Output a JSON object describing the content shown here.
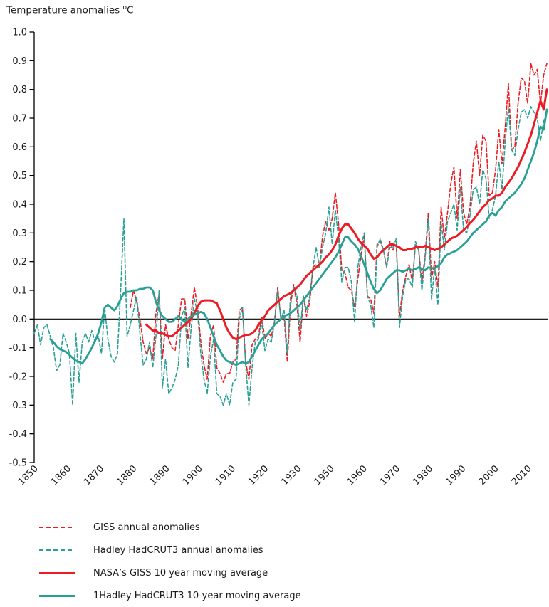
{
  "chart_data": {
    "type": "line",
    "title": "Temperature anomalies",
    "title_unit_sup": "o",
    "title_unit": "C",
    "xlabel": "",
    "ylabel": "Temperature anomalies (deg C)",
    "xlim": [
      1850,
      2010
    ],
    "ylim": [
      -0.5,
      1.0
    ],
    "grid": false,
    "legend_position": "bottom-left",
    "colors": {
      "red": "#ed1c24",
      "teal": "#2aa095",
      "axis": "#000000",
      "text": "#1a1a1a"
    },
    "y_tick_labels": [
      "1.0",
      "0.9",
      "0.8",
      "0.7",
      "0.6",
      "0.5",
      "0.4",
      "0.3",
      "0.2",
      "0.1",
      "0.0",
      "-0.1",
      "-0.2",
      "-0.3",
      "-0.4",
      "-0.5"
    ],
    "x_tick_labels": [
      "1850",
      "1860",
      "1870",
      "1880",
      "1890",
      "1900",
      "1910",
      "1920",
      "1930",
      "1950",
      "1960",
      "1970",
      "1980",
      "1990",
      "2000",
      "2010"
    ],
    "series": [
      {
        "name": "GISS annual anomalies",
        "color": "#ed1c24",
        "style": "dashed",
        "width": 1.6,
        "start_year": 1880,
        "values": [
          0.04,
          0.1,
          0.06,
          0.0,
          -0.08,
          -0.12,
          -0.1,
          -0.14,
          0.02,
          0.09,
          -0.14,
          -0.02,
          -0.07,
          -0.1,
          -0.11,
          -0.02,
          0.07,
          0.07,
          -0.07,
          0.02,
          0.11,
          0.04,
          -0.08,
          -0.16,
          -0.21,
          -0.06,
          -0.02,
          -0.17,
          -0.19,
          -0.22,
          -0.19,
          -0.19,
          -0.15,
          -0.14,
          0.03,
          0.04,
          -0.15,
          -0.21,
          -0.09,
          -0.07,
          -0.06,
          0.01,
          -0.07,
          -0.05,
          -0.06,
          -0.01,
          0.11,
          0.0,
          0.01,
          -0.15,
          0.05,
          0.12,
          0.05,
          -0.08,
          0.08,
          0.01,
          0.06,
          0.18,
          0.19,
          0.18,
          0.29,
          0.34,
          0.31,
          0.35,
          0.44,
          0.33,
          0.17,
          0.16,
          0.11,
          0.1,
          0.04,
          0.14,
          0.22,
          0.29,
          0.08,
          0.07,
          0.02,
          0.26,
          0.27,
          0.24,
          0.18,
          0.27,
          0.24,
          0.26,
          0.01,
          0.1,
          0.15,
          0.19,
          0.13,
          0.26,
          0.24,
          0.13,
          0.22,
          0.37,
          0.14,
          0.2,
          0.11,
          0.39,
          0.28,
          0.37,
          0.47,
          0.53,
          0.35,
          0.52,
          0.37,
          0.33,
          0.39,
          0.54,
          0.62,
          0.5,
          0.64,
          0.62,
          0.43,
          0.44,
          0.52,
          0.66,
          0.54,
          0.67,
          0.82,
          0.59,
          0.6,
          0.75,
          0.84,
          0.83,
          0.75,
          0.89,
          0.85,
          0.87,
          0.75,
          0.85,
          0.89
        ]
      },
      {
        "name": "Hadley HadCRUT3 annual anomalies",
        "color": "#2aa095",
        "style": "dashed",
        "width": 1.6,
        "start_year": 1850,
        "values": [
          -0.05,
          -0.02,
          -0.09,
          -0.03,
          -0.02,
          -0.06,
          -0.1,
          -0.18,
          -0.16,
          -0.05,
          -0.08,
          -0.12,
          -0.3,
          -0.05,
          -0.22,
          -0.08,
          -0.05,
          -0.08,
          -0.04,
          -0.08,
          -0.06,
          -0.12,
          0.04,
          -0.07,
          -0.13,
          -0.15,
          -0.12,
          0.1,
          0.35,
          -0.06,
          -0.02,
          0.03,
          0.08,
          -0.05,
          -0.16,
          -0.14,
          -0.08,
          -0.17,
          -0.06,
          0.1,
          -0.24,
          -0.14,
          -0.26,
          -0.24,
          -0.21,
          -0.16,
          0.01,
          0.04,
          -0.17,
          -0.03,
          0.07,
          0.02,
          -0.12,
          -0.21,
          -0.26,
          -0.13,
          -0.07,
          -0.26,
          -0.27,
          -0.3,
          -0.26,
          -0.3,
          -0.22,
          -0.21,
          0.0,
          0.04,
          -0.16,
          -0.3,
          -0.17,
          -0.08,
          -0.07,
          -0.01,
          -0.11,
          -0.07,
          -0.08,
          -0.01,
          0.1,
          0.0,
          0.03,
          -0.12,
          0.08,
          0.11,
          0.08,
          -0.04,
          0.08,
          0.03,
          0.08,
          0.18,
          0.25,
          0.18,
          0.25,
          0.3,
          0.39,
          0.26,
          0.38,
          0.28,
          0.13,
          0.18,
          0.18,
          0.13,
          -0.01,
          0.18,
          0.25,
          0.3,
          0.08,
          0.05,
          -0.03,
          0.25,
          0.28,
          0.24,
          0.18,
          0.25,
          0.25,
          0.28,
          -0.03,
          0.08,
          0.14,
          0.14,
          0.11,
          0.27,
          0.24,
          0.1,
          0.21,
          0.35,
          0.07,
          0.18,
          0.05,
          0.34,
          0.24,
          0.34,
          0.37,
          0.4,
          0.31,
          0.46,
          0.31,
          0.3,
          0.36,
          0.45,
          0.46,
          0.4,
          0.52,
          0.49,
          0.35,
          0.38,
          0.43,
          0.55,
          0.45,
          0.62,
          0.74,
          0.59,
          0.57,
          0.66,
          0.72,
          0.73,
          0.7,
          0.74,
          0.72,
          0.7,
          0.62,
          0.69,
          0.72
        ]
      },
      {
        "name": "NASA’s GISS 10 year moving average",
        "color": "#ed1c24",
        "style": "solid",
        "width": 3,
        "start_year": 1885,
        "values": [
          -0.02,
          -0.03,
          -0.04,
          -0.04,
          -0.05,
          -0.05,
          -0.055,
          -0.06,
          -0.06,
          -0.05,
          -0.04,
          -0.03,
          -0.02,
          -0.01,
          0.0,
          0.02,
          0.045,
          0.06,
          0.065,
          0.065,
          0.065,
          0.06,
          0.055,
          0.03,
          0.0,
          -0.03,
          -0.05,
          -0.065,
          -0.07,
          -0.065,
          -0.06,
          -0.055,
          -0.055,
          -0.05,
          -0.04,
          -0.02,
          -0.005,
          0.01,
          0.03,
          0.04,
          0.05,
          0.06,
          0.07,
          0.08,
          0.085,
          0.09,
          0.1,
          0.11,
          0.12,
          0.135,
          0.15,
          0.16,
          0.17,
          0.18,
          0.19,
          0.2,
          0.215,
          0.225,
          0.24,
          0.26,
          0.29,
          0.315,
          0.33,
          0.33,
          0.315,
          0.3,
          0.28,
          0.265,
          0.255,
          0.245,
          0.225,
          0.21,
          0.215,
          0.23,
          0.24,
          0.25,
          0.26,
          0.26,
          0.255,
          0.25,
          0.24,
          0.24,
          0.245,
          0.245,
          0.25,
          0.25,
          0.25,
          0.255,
          0.25,
          0.245,
          0.24,
          0.245,
          0.25,
          0.26,
          0.27,
          0.28,
          0.285,
          0.29,
          0.3,
          0.31,
          0.32,
          0.335,
          0.345,
          0.36,
          0.375,
          0.39,
          0.4,
          0.415,
          0.42,
          0.43,
          0.43,
          0.44,
          0.46,
          0.475,
          0.49,
          0.51,
          0.53,
          0.555,
          0.58,
          0.61,
          0.64,
          0.68,
          0.72,
          0.76,
          0.73,
          0.8
        ]
      },
      {
        "name": "1Hadley HadCRUT3 10-year moving average",
        "color": "#2aa095",
        "style": "solid",
        "width": 2.8,
        "start_year": 1855,
        "values": [
          -0.07,
          -0.08,
          -0.095,
          -0.105,
          -0.11,
          -0.115,
          -0.125,
          -0.135,
          -0.145,
          -0.15,
          -0.155,
          -0.14,
          -0.12,
          -0.1,
          -0.075,
          -0.05,
          -0.01,
          0.04,
          0.05,
          0.04,
          0.03,
          0.045,
          0.07,
          0.09,
          0.095,
          0.095,
          0.1,
          0.1,
          0.105,
          0.105,
          0.11,
          0.11,
          0.1,
          0.06,
          0.03,
          0.01,
          0.0,
          -0.01,
          -0.01,
          0.0,
          0.01,
          0.0,
          -0.01,
          0.0,
          0.01,
          0.015,
          0.02,
          0.025,
          0.02,
          0.0,
          -0.03,
          -0.06,
          -0.09,
          -0.11,
          -0.13,
          -0.145,
          -0.15,
          -0.155,
          -0.16,
          -0.155,
          -0.15,
          -0.155,
          -0.15,
          -0.13,
          -0.11,
          -0.09,
          -0.07,
          -0.06,
          -0.05,
          -0.035,
          -0.02,
          -0.01,
          0.0,
          0.01,
          0.015,
          0.02,
          0.03,
          0.04,
          0.05,
          0.065,
          0.08,
          0.095,
          0.11,
          0.125,
          0.14,
          0.155,
          0.17,
          0.185,
          0.2,
          0.215,
          0.235,
          0.26,
          0.285,
          0.285,
          0.27,
          0.26,
          0.245,
          0.22,
          0.19,
          0.16,
          0.13,
          0.105,
          0.09,
          0.1,
          0.12,
          0.14,
          0.15,
          0.16,
          0.17,
          0.17,
          0.165,
          0.17,
          0.175,
          0.17,
          0.175,
          0.18,
          0.175,
          0.17,
          0.18,
          0.178,
          0.176,
          0.185,
          0.195,
          0.215,
          0.225,
          0.23,
          0.235,
          0.24,
          0.25,
          0.26,
          0.27,
          0.285,
          0.3,
          0.31,
          0.32,
          0.33,
          0.34,
          0.36,
          0.37,
          0.36,
          0.38,
          0.39,
          0.41,
          0.42,
          0.43,
          0.44,
          0.455,
          0.47,
          0.49,
          0.52,
          0.55,
          0.58,
          0.62,
          0.67,
          0.66,
          0.73
        ]
      }
    ]
  },
  "legend": {
    "items": [
      {
        "label": "GISS annual anomalies"
      },
      {
        "label": "Hadley HadCRUT3 annual anomalies"
      },
      {
        "label": "NASA’s GISS 10 year moving average"
      },
      {
        "label": "1Hadley HadCRUT3 10-year moving average"
      }
    ]
  }
}
